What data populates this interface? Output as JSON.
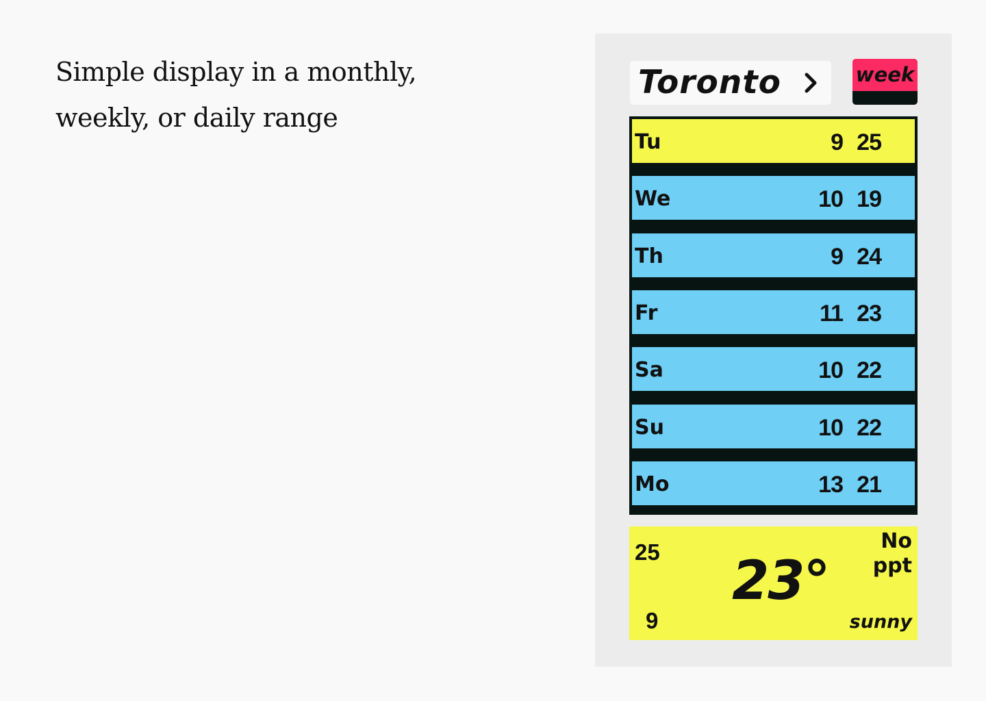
{
  "caption": {
    "line1": "Simple display in a monthly,",
    "line2": "weekly, or daily range"
  },
  "header": {
    "city": "Toronto",
    "range_button": "week",
    "nav_icon": "chevron-right-icon"
  },
  "forecast": [
    {
      "day": "Tu",
      "low": "9",
      "high": "25",
      "active": true
    },
    {
      "day": "We",
      "low": "10",
      "high": "19",
      "active": false
    },
    {
      "day": "Th",
      "low": "9",
      "high": "24",
      "active": false
    },
    {
      "day": "Fr",
      "low": "11",
      "high": "23",
      "active": false
    },
    {
      "day": "Sa",
      "low": "10",
      "high": "22",
      "active": false
    },
    {
      "day": "Su",
      "low": "10",
      "high": "22",
      "active": false
    },
    {
      "day": "Mo",
      "low": "13",
      "high": "21",
      "active": false
    }
  ],
  "current": {
    "high": "25",
    "low": "9",
    "temp": "23°",
    "precip": "No\nppt",
    "condition": "sunny"
  },
  "colors": {
    "active_row": "#f5f84a",
    "row": "#6fcff5",
    "accent": "#fc2a63",
    "frame": "#071411",
    "panel": "#ececec"
  }
}
